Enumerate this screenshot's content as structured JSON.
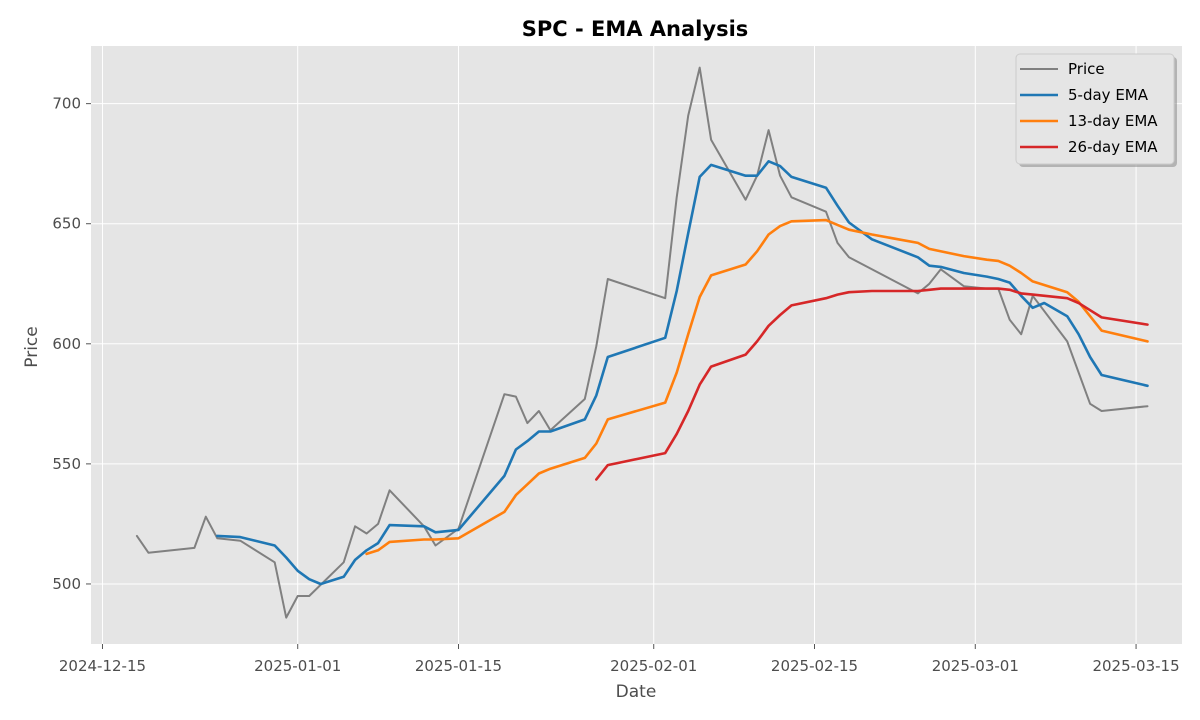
{
  "chart_data": {
    "type": "line",
    "title": "SPC - EMA Analysis",
    "xlabel": "Date",
    "ylabel": "Price",
    "xlim": [
      "2024-12-14",
      "2025-03-19"
    ],
    "ylim": [
      475,
      724
    ],
    "x_ticks": [
      "2024-12-15",
      "2025-01-01",
      "2025-01-15",
      "2025-02-01",
      "2025-02-15",
      "2025-03-01",
      "2025-03-15"
    ],
    "y_ticks": [
      500,
      550,
      600,
      650,
      700
    ],
    "grid": true,
    "legend_position": "top-right",
    "series": [
      {
        "name": "Price",
        "color": "#808080",
        "points": [
          [
            "2024-12-18",
            520
          ],
          [
            "2024-12-19",
            513
          ],
          [
            "2024-12-23",
            515
          ],
          [
            "2024-12-24",
            528
          ],
          [
            "2024-12-25",
            519
          ],
          [
            "2024-12-27",
            518
          ],
          [
            "2024-12-30",
            509
          ],
          [
            "2024-12-31",
            486
          ],
          [
            "2025-01-01",
            495
          ],
          [
            "2025-01-02",
            495
          ],
          [
            "2025-01-05",
            509
          ],
          [
            "2025-01-06",
            524
          ],
          [
            "2025-01-07",
            521
          ],
          [
            "2025-01-08",
            525
          ],
          [
            "2025-01-09",
            539
          ],
          [
            "2025-01-12",
            524
          ],
          [
            "2025-01-13",
            516
          ],
          [
            "2025-01-15",
            523
          ],
          [
            "2025-01-19",
            579
          ],
          [
            "2025-01-20",
            578
          ],
          [
            "2025-01-21",
            567
          ],
          [
            "2025-01-22",
            572
          ],
          [
            "2025-01-23",
            564
          ],
          [
            "2025-01-26",
            577
          ],
          [
            "2025-01-27",
            599
          ],
          [
            "2025-01-28",
            627
          ],
          [
            "2025-02-02",
            619
          ],
          [
            "2025-02-03",
            661
          ],
          [
            "2025-02-04",
            695
          ],
          [
            "2025-02-05",
            715
          ],
          [
            "2025-02-06",
            685
          ],
          [
            "2025-02-09",
            660
          ],
          [
            "2025-02-10",
            670
          ],
          [
            "2025-02-11",
            689
          ],
          [
            "2025-02-12",
            670
          ],
          [
            "2025-02-13",
            661
          ],
          [
            "2025-02-16",
            655
          ],
          [
            "2025-02-17",
            642
          ],
          [
            "2025-02-18",
            636
          ],
          [
            "2025-02-24",
            621
          ],
          [
            "2025-02-25",
            625
          ],
          [
            "2025-02-26",
            631
          ],
          [
            "2025-02-28",
            624
          ],
          [
            "2025-03-02",
            623
          ],
          [
            "2025-03-03",
            623
          ],
          [
            "2025-03-04",
            610
          ],
          [
            "2025-03-05",
            604
          ],
          [
            "2025-03-06",
            620
          ],
          [
            "2025-03-09",
            601
          ],
          [
            "2025-03-11",
            575
          ],
          [
            "2025-03-12",
            572
          ],
          [
            "2025-03-16",
            574
          ]
        ]
      },
      {
        "name": "5-day EMA",
        "color": "#1f77b4",
        "points": [
          [
            "2024-12-25",
            520
          ],
          [
            "2024-12-27",
            519.5
          ],
          [
            "2024-12-30",
            516
          ],
          [
            "2024-12-31",
            511
          ],
          [
            "2025-01-01",
            505.5
          ],
          [
            "2025-01-02",
            502
          ],
          [
            "2025-01-03",
            500
          ],
          [
            "2025-01-05",
            503
          ],
          [
            "2025-01-06",
            510
          ],
          [
            "2025-01-07",
            514
          ],
          [
            "2025-01-08",
            517
          ],
          [
            "2025-01-09",
            524.5
          ],
          [
            "2025-01-12",
            524
          ],
          [
            "2025-01-13",
            521.5
          ],
          [
            "2025-01-15",
            522.5
          ],
          [
            "2025-01-19",
            545
          ],
          [
            "2025-01-20",
            556
          ],
          [
            "2025-01-21",
            559.5
          ],
          [
            "2025-01-22",
            563.5
          ],
          [
            "2025-01-23",
            563.5
          ],
          [
            "2025-01-26",
            568.5
          ],
          [
            "2025-01-27",
            578.5
          ],
          [
            "2025-01-28",
            594.5
          ],
          [
            "2025-02-02",
            602.5
          ],
          [
            "2025-02-03",
            622
          ],
          [
            "2025-02-04",
            646
          ],
          [
            "2025-02-05",
            669.5
          ],
          [
            "2025-02-06",
            674.5
          ],
          [
            "2025-02-09",
            670
          ],
          [
            "2025-02-10",
            670
          ],
          [
            "2025-02-11",
            676
          ],
          [
            "2025-02-12",
            674
          ],
          [
            "2025-02-13",
            669.5
          ],
          [
            "2025-02-16",
            665
          ],
          [
            "2025-02-17",
            657.5
          ],
          [
            "2025-02-18",
            650.5
          ],
          [
            "2025-02-20",
            643.5
          ],
          [
            "2025-02-24",
            636
          ],
          [
            "2025-02-25",
            632.5
          ],
          [
            "2025-02-26",
            632
          ],
          [
            "2025-02-28",
            629.5
          ],
          [
            "2025-03-02",
            628
          ],
          [
            "2025-03-03",
            627
          ],
          [
            "2025-03-04",
            625.5
          ],
          [
            "2025-03-05",
            620
          ],
          [
            "2025-03-06",
            615
          ],
          [
            "2025-03-07",
            617
          ],
          [
            "2025-03-09",
            611.5
          ],
          [
            "2025-03-10",
            604
          ],
          [
            "2025-03-11",
            594.5
          ],
          [
            "2025-03-12",
            587
          ],
          [
            "2025-03-16",
            582.5
          ]
        ]
      },
      {
        "name": "13-day EMA",
        "color": "#ff7f0e",
        "points": [
          [
            "2025-01-07",
            512.5
          ],
          [
            "2025-01-08",
            514
          ],
          [
            "2025-01-09",
            517.5
          ],
          [
            "2025-01-12",
            518.5
          ],
          [
            "2025-01-13",
            518.5
          ],
          [
            "2025-01-15",
            519
          ],
          [
            "2025-01-19",
            530
          ],
          [
            "2025-01-20",
            537
          ],
          [
            "2025-01-21",
            541.5
          ],
          [
            "2025-01-22",
            546
          ],
          [
            "2025-01-23",
            548
          ],
          [
            "2025-01-26",
            552.5
          ],
          [
            "2025-01-27",
            558.5
          ],
          [
            "2025-01-28",
            568.5
          ],
          [
            "2025-02-02",
            575.5
          ],
          [
            "2025-02-03",
            588
          ],
          [
            "2025-02-04",
            604
          ],
          [
            "2025-02-05",
            619.5
          ],
          [
            "2025-02-06",
            628.5
          ],
          [
            "2025-02-09",
            633
          ],
          [
            "2025-02-10",
            638.5
          ],
          [
            "2025-02-11",
            645.5
          ],
          [
            "2025-02-12",
            649
          ],
          [
            "2025-02-13",
            651
          ],
          [
            "2025-02-16",
            651.5
          ],
          [
            "2025-02-17",
            649.5
          ],
          [
            "2025-02-18",
            647.5
          ],
          [
            "2025-02-20",
            645.5
          ],
          [
            "2025-02-24",
            642
          ],
          [
            "2025-02-25",
            639.5
          ],
          [
            "2025-02-28",
            636.5
          ],
          [
            "2025-03-02",
            635
          ],
          [
            "2025-03-03",
            634.5
          ],
          [
            "2025-03-04",
            632.5
          ],
          [
            "2025-03-05",
            629.5
          ],
          [
            "2025-03-06",
            626
          ],
          [
            "2025-03-09",
            621.5
          ],
          [
            "2025-03-10",
            617.5
          ],
          [
            "2025-03-11",
            611.5
          ],
          [
            "2025-03-12",
            605.5
          ],
          [
            "2025-03-16",
            601
          ]
        ]
      },
      {
        "name": "26-day EMA",
        "color": "#d62728",
        "points": [
          [
            "2025-01-27",
            543.5
          ],
          [
            "2025-01-28",
            549.5
          ],
          [
            "2025-02-02",
            554.5
          ],
          [
            "2025-02-03",
            562.5
          ],
          [
            "2025-02-04",
            572
          ],
          [
            "2025-02-05",
            583
          ],
          [
            "2025-02-06",
            590.5
          ],
          [
            "2025-02-09",
            595.5
          ],
          [
            "2025-02-10",
            601
          ],
          [
            "2025-02-11",
            607.5
          ],
          [
            "2025-02-12",
            612
          ],
          [
            "2025-02-13",
            616
          ],
          [
            "2025-02-16",
            619
          ],
          [
            "2025-02-17",
            620.5
          ],
          [
            "2025-02-18",
            621.5
          ],
          [
            "2025-02-20",
            622
          ],
          [
            "2025-02-24",
            622
          ],
          [
            "2025-02-25",
            622.5
          ],
          [
            "2025-02-26",
            623
          ],
          [
            "2025-02-28",
            623
          ],
          [
            "2025-03-02",
            623
          ],
          [
            "2025-03-03",
            623
          ],
          [
            "2025-03-04",
            622.5
          ],
          [
            "2025-03-05",
            621
          ],
          [
            "2025-03-06",
            620.5
          ],
          [
            "2025-03-09",
            619
          ],
          [
            "2025-03-10",
            617
          ],
          [
            "2025-03-11",
            614
          ],
          [
            "2025-03-12",
            611
          ],
          [
            "2025-03-16",
            608
          ]
        ]
      }
    ]
  }
}
